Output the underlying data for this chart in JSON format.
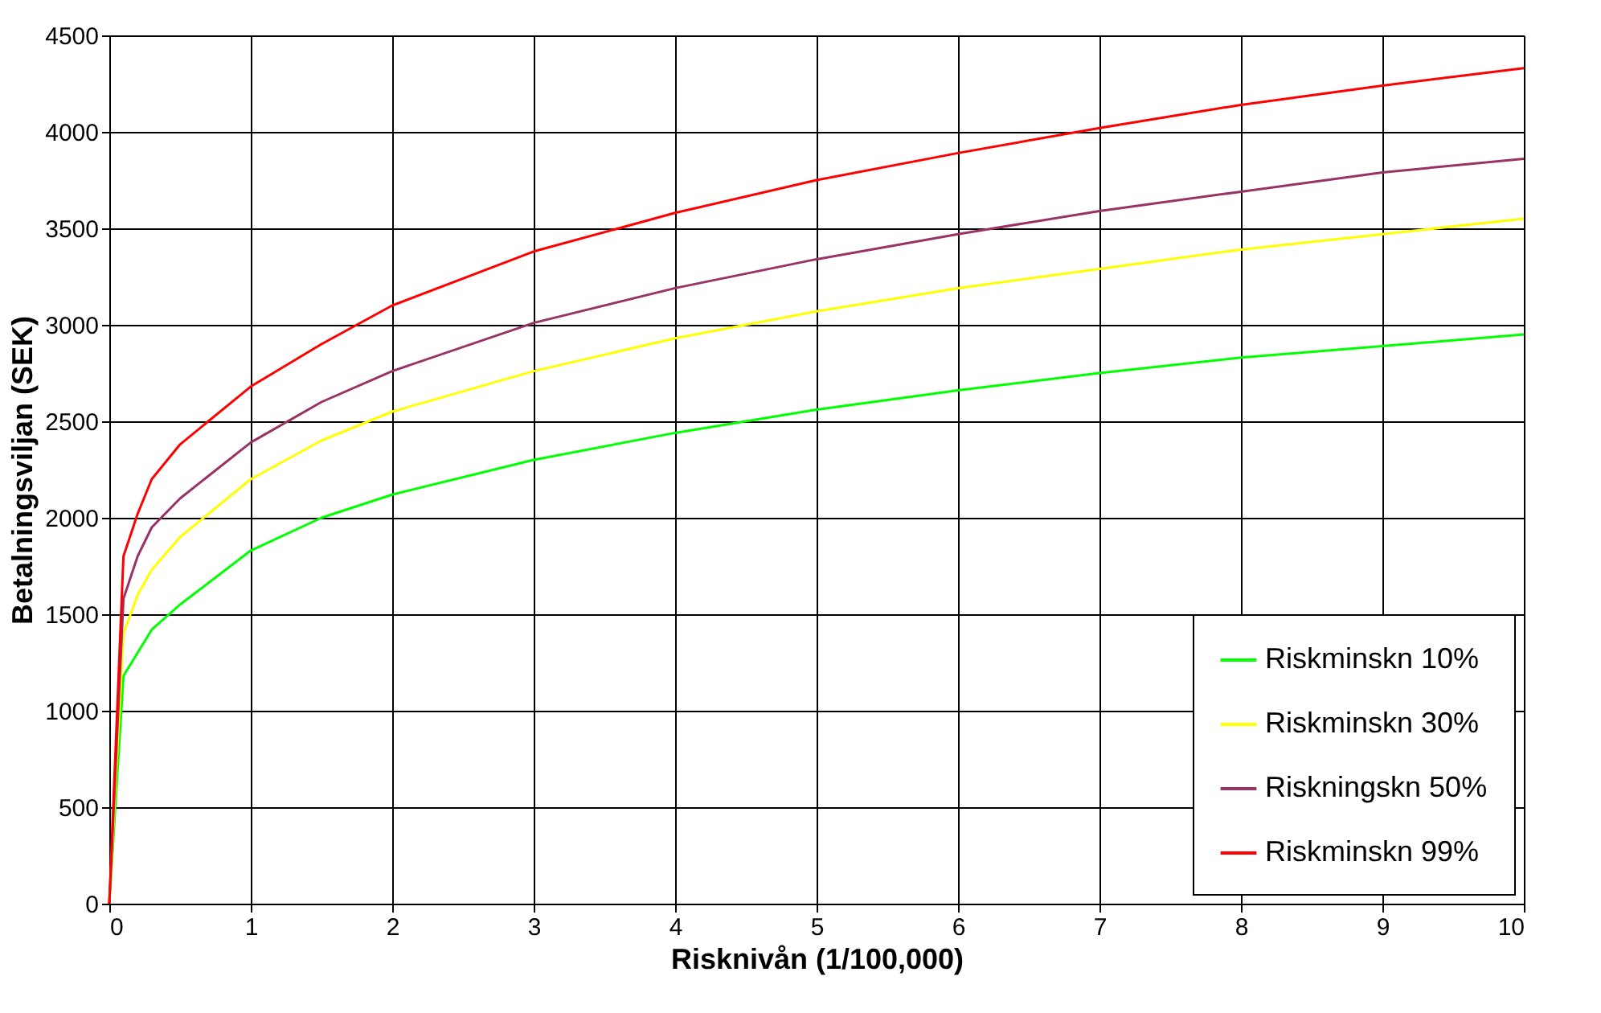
{
  "chart_data": {
    "type": "line",
    "xlabel": "Risknivån (1/100,000)",
    "ylabel": "Betalningsviljan (SEK)",
    "x": [
      0,
      0.1,
      0.2,
      0.3,
      0.5,
      1,
      1.5,
      2,
      3,
      4,
      5,
      6,
      7,
      8,
      9,
      10
    ],
    "series": [
      {
        "name": "Riskminskn 10%",
        "color": "#00ff00",
        "values": [
          0,
          1180,
          1300,
          1420,
          1550,
          1830,
          2000,
          2120,
          2300,
          2440,
          2560,
          2660,
          2750,
          2830,
          2890,
          2950
        ]
      },
      {
        "name": "Riskminskn 30%",
        "color": "#ffff00",
        "values": [
          0,
          1400,
          1600,
          1730,
          1900,
          2200,
          2400,
          2550,
          2760,
          2930,
          3070,
          3190,
          3290,
          3390,
          3470,
          3550
        ]
      },
      {
        "name": "Riskningskn 50%",
        "color": "#993366",
        "values": [
          0,
          1580,
          1800,
          1950,
          2100,
          2390,
          2600,
          2760,
          3010,
          3190,
          3340,
          3470,
          3590,
          3690,
          3790,
          3860
        ]
      },
      {
        "name": "Riskminskn 99%",
        "color": "#ff0000",
        "values": [
          0,
          1800,
          2020,
          2200,
          2380,
          2680,
          2900,
          3100,
          3380,
          3580,
          3750,
          3890,
          4020,
          4140,
          4240,
          4330
        ]
      }
    ],
    "xlim": [
      0,
      10
    ],
    "xticks": [
      0,
      1,
      2,
      3,
      4,
      5,
      6,
      7,
      8,
      9,
      10
    ],
    "ylim": [
      0,
      4500
    ],
    "yticks": [
      0,
      500,
      1000,
      1500,
      2000,
      2500,
      3000,
      3500,
      4000,
      4500
    ],
    "grid": true,
    "legend": "bottom right",
    "marker": "none",
    "line_style": "solid"
  }
}
